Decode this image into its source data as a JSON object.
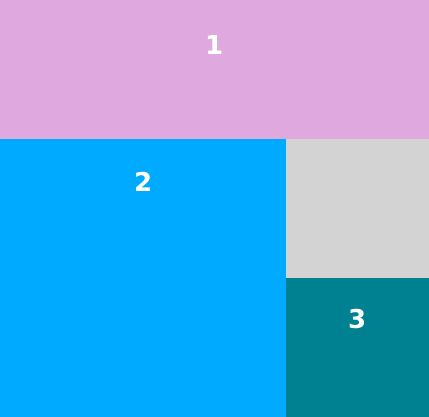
{
  "tiles": [
    {
      "label": "1",
      "color": "#dfa9df"
    },
    {
      "label": "2",
      "color": "#00aaff"
    },
    {
      "label": "",
      "color": "#d3d3d3"
    },
    {
      "label": "3",
      "color": "#008191"
    }
  ]
}
